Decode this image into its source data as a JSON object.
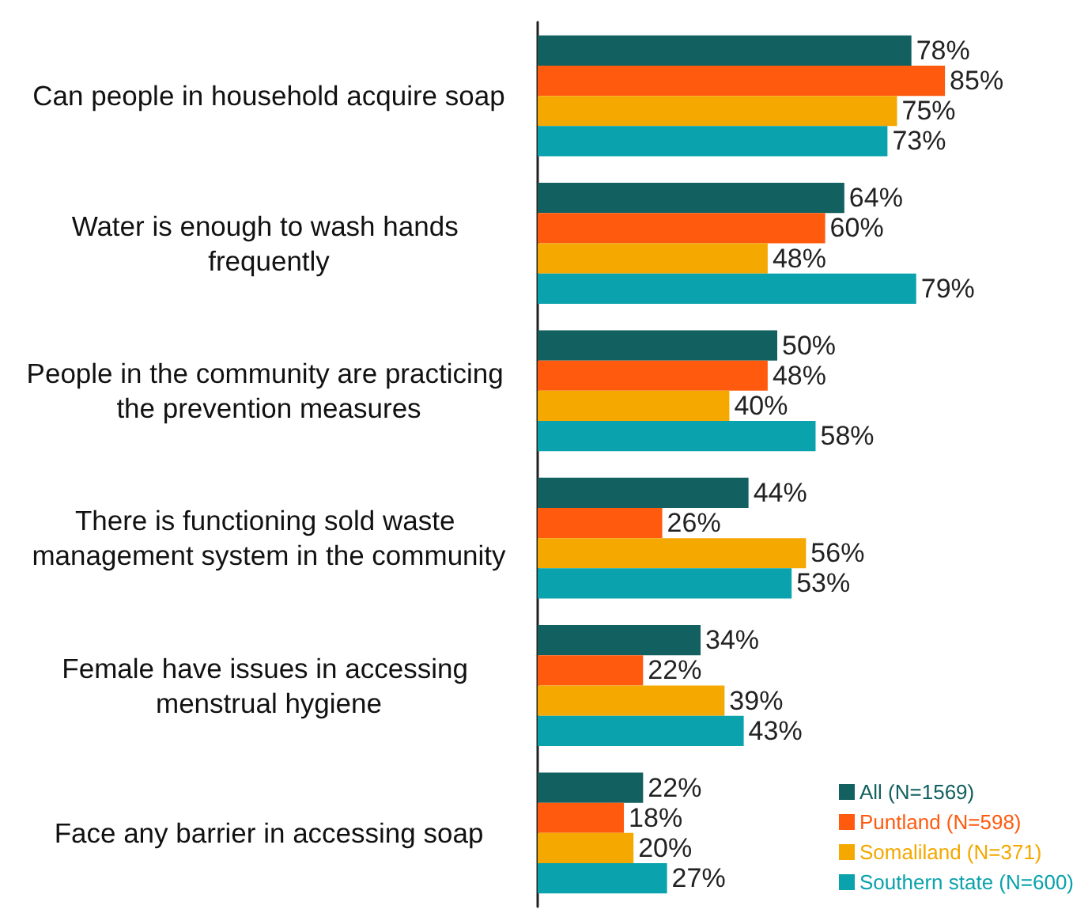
{
  "chart_data": {
    "type": "bar",
    "orientation": "horizontal",
    "categories": [
      "Can people in household acquire soap",
      "Water is enough to wash hands frequently",
      "People in the community are practicing the prevention measures",
      "There is functioning sold waste management system in the community",
      "Female have issues in accessing menstrual hygiene",
      "Face any barrier in accessing soap"
    ],
    "series": [
      {
        "name": "All (N=1569)",
        "color": "#12605f",
        "values": [
          78,
          64,
          50,
          44,
          34,
          22
        ],
        "value_labels": [
          "78%",
          "64%",
          "50%",
          "44%",
          "34%",
          "22%"
        ]
      },
      {
        "name": "Puntland (N=598)",
        "color": "#ff5a0e",
        "values": [
          85,
          60,
          48,
          26,
          22,
          18
        ],
        "value_labels": [
          "85%",
          "60%",
          "48%",
          "26%",
          "22%",
          "18%"
        ]
      },
      {
        "name": "Somaliland (N=371)",
        "color": "#f4a800",
        "values": [
          75,
          48,
          40,
          56,
          39,
          20
        ],
        "value_labels": [
          "75%",
          "48%",
          "40%",
          "56%",
          "39%",
          "20%"
        ]
      },
      {
        "name": "Southern state (N=600)",
        "color": "#0aa2ac",
        "values": [
          73,
          79,
          58,
          53,
          43,
          27
        ],
        "value_labels": [
          "73%",
          "79%",
          "58%",
          "53%",
          "43%",
          "27%"
        ]
      }
    ],
    "legend": "bottom right",
    "grid": false
  }
}
